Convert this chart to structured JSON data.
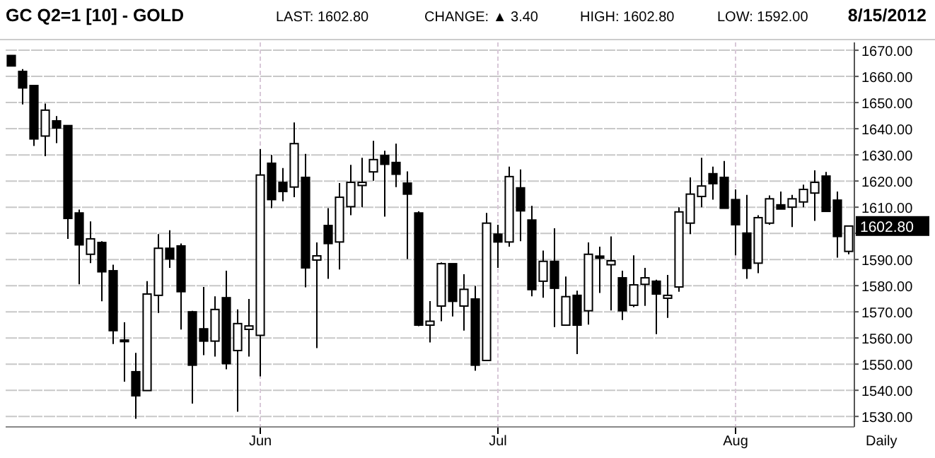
{
  "chart_data": {
    "type": "candlestick",
    "title": "GC Q2=1 [10] - GOLD",
    "annotations": [
      "LAST: 1602.80",
      "CHANGE: ▲ 3.40",
      "HIGH: 1602.80",
      "LOW: 1592.00",
      "8/15/2012",
      "Daily",
      "1602.80"
    ],
    "categories": [
      null,
      null,
      null,
      null,
      null,
      null,
      null,
      null,
      null,
      null,
      null,
      null,
      null,
      null,
      null,
      null,
      null,
      null,
      null,
      null,
      null,
      null,
      "Jun",
      null,
      null,
      null,
      null,
      null,
      null,
      null,
      null,
      null,
      null,
      null,
      null,
      null,
      null,
      null,
      null,
      null,
      null,
      null,
      null,
      "Jul",
      null,
      null,
      null,
      null,
      null,
      null,
      null,
      null,
      null,
      null,
      null,
      null,
      null,
      null,
      null,
      null,
      null,
      null,
      null,
      null,
      "Aug",
      null,
      null,
      null,
      null,
      null,
      null,
      null,
      null,
      null,
      null
    ],
    "ohlc": [
      [
        1668,
        1668,
        1664,
        1664
      ],
      [
        1661.9,
        1662.8,
        1649.3,
        1655.6
      ],
      [
        1656.5,
        1656.5,
        1633.4,
        1636.1
      ],
      [
        1637.2,
        1649.6,
        1629.5,
        1647.1
      ],
      [
        1643,
        1644.8,
        1634.5,
        1640.3
      ],
      [
        1641.2,
        1641.2,
        1597.9,
        1605.7
      ],
      [
        1607.8,
        1609.1,
        1580.5,
        1595.6
      ],
      [
        1592,
        1604.6,
        1588.6,
        1597.9
      ],
      [
        1596.5,
        1597,
        1574,
        1585.3
      ],
      [
        1585.7,
        1588,
        1557.7,
        1562.8
      ],
      [
        1559.2,
        1566,
        1543.3,
        1558.6
      ],
      [
        1547.1,
        1554.3,
        1529.1,
        1537.9
      ],
      [
        1539.9,
        1581.7,
        1539.9,
        1576.8
      ],
      [
        1576.3,
        1599.7,
        1569.6,
        1594.3
      ],
      [
        1594.3,
        1601.2,
        1586.8,
        1590.2
      ],
      [
        1595.2,
        1596.1,
        1563.2,
        1577.7
      ],
      [
        1570,
        1570.4,
        1534.9,
        1549.6
      ],
      [
        1563.5,
        1579.5,
        1553.4,
        1558.8
      ],
      [
        1558.8,
        1575.9,
        1552.9,
        1570.9
      ],
      [
        1575.4,
        1585.7,
        1548,
        1550.2
      ],
      [
        1555.2,
        1570.9,
        1531.8,
        1565.5
      ],
      [
        1563.3,
        1574.9,
        1552.9,
        1564.6
      ],
      [
        1561,
        1632.2,
        1545.3,
        1622.3
      ],
      [
        1626.8,
        1630,
        1609.6,
        1612.9
      ],
      [
        1619.5,
        1625,
        1612.3,
        1616
      ],
      [
        1617.7,
        1642.4,
        1613.8,
        1634.3
      ],
      [
        1621.4,
        1630.4,
        1579.4,
        1586.8
      ],
      [
        1589.8,
        1596.5,
        1556.1,
        1591.4
      ],
      [
        1603,
        1609.6,
        1582.6,
        1596.1
      ],
      [
        1596.7,
        1619.2,
        1586.2,
        1613.8
      ],
      [
        1610.2,
        1626.2,
        1606.9,
        1619.5
      ],
      [
        1618.3,
        1628.9,
        1610,
        1619.5
      ],
      [
        1623.5,
        1635.4,
        1620.1,
        1628.2
      ],
      [
        1629.8,
        1631.6,
        1606.4,
        1626.4
      ],
      [
        1627.1,
        1634.3,
        1617.7,
        1622.6
      ],
      [
        1619.2,
        1623.7,
        1590.2,
        1615
      ],
      [
        1607.8,
        1608.4,
        1564.5,
        1564.9
      ],
      [
        1564.9,
        1574.1,
        1558.3,
        1566.4
      ],
      [
        1572.2,
        1588.9,
        1566.4,
        1588.4
      ],
      [
        1588.4,
        1588.4,
        1568.2,
        1574
      ],
      [
        1572.2,
        1584.4,
        1562.8,
        1578.6
      ],
      [
        1574.9,
        1579.9,
        1547.5,
        1549.6
      ],
      [
        1551.4,
        1607.8,
        1551.4,
        1603.9
      ],
      [
        1599.7,
        1603.3,
        1586.8,
        1596.7
      ],
      [
        1596.7,
        1625.5,
        1594.9,
        1621.7
      ],
      [
        1617.4,
        1624.4,
        1597,
        1608.6
      ],
      [
        1605.1,
        1610.5,
        1575.9,
        1578.5
      ],
      [
        1581.7,
        1593.4,
        1575.4,
        1589.3
      ],
      [
        1589.3,
        1601.9,
        1564.2,
        1579
      ],
      [
        1564.9,
        1583.5,
        1564.9,
        1575.8
      ],
      [
        1576.3,
        1578.1,
        1553.8,
        1564.9
      ],
      [
        1570.4,
        1596.5,
        1565.1,
        1592
      ],
      [
        1591.3,
        1594.9,
        1577.2,
        1590.5
      ],
      [
        1588,
        1598.8,
        1570.5,
        1589.5
      ],
      [
        1583,
        1585.7,
        1566.9,
        1570.4
      ],
      [
        1572.5,
        1591.6,
        1571.8,
        1580.3
      ],
      [
        1580.5,
        1586.8,
        1572.3,
        1583
      ],
      [
        1581.7,
        1582.3,
        1561.5,
        1576.8
      ],
      [
        1575.2,
        1584.1,
        1567.7,
        1576.3
      ],
      [
        1579.5,
        1610,
        1577.7,
        1608.2
      ],
      [
        1603.9,
        1621.4,
        1599.7,
        1615
      ],
      [
        1614.1,
        1628.9,
        1610,
        1618.1
      ],
      [
        1622.8,
        1625.5,
        1612.9,
        1619
      ],
      [
        1621.4,
        1627.7,
        1609.6,
        1609.6
      ],
      [
        1612.9,
        1616.8,
        1591.6,
        1603.3
      ],
      [
        1600.1,
        1614.7,
        1582.6,
        1586.6
      ],
      [
        1588.6,
        1606.9,
        1584.8,
        1606
      ],
      [
        1603.9,
        1614.5,
        1603.3,
        1613.2
      ],
      [
        1610.9,
        1616,
        1609.3,
        1609.3
      ],
      [
        1610,
        1614.7,
        1602.4,
        1613.2
      ],
      [
        1612,
        1618.6,
        1610,
        1616.8
      ],
      [
        1615.4,
        1624.1,
        1604.8,
        1619.5
      ],
      [
        1621.9,
        1623.5,
        1608.4,
        1608.4
      ],
      [
        1612.7,
        1616,
        1590.7,
        1598.8
      ],
      [
        1593.1,
        1602.8,
        1592,
        1602.8
      ]
    ],
    "ylim": [
      1526,
      1673
    ],
    "yticks": [
      {
        "value": 1530,
        "label": "1530.00"
      },
      {
        "value": 1540,
        "label": "1540.00"
      },
      {
        "value": 1550,
        "label": "1550.00"
      },
      {
        "value": 1560,
        "label": "1560.00"
      },
      {
        "value": 1570,
        "label": "1570.00"
      },
      {
        "value": 1580,
        "label": "1580.00"
      },
      {
        "value": 1590,
        "label": "1590.00"
      },
      {
        "value": 1600,
        "label": null
      },
      {
        "value": 1610,
        "label": "1610.00"
      },
      {
        "value": 1620,
        "label": "1620.00"
      },
      {
        "value": 1630,
        "label": "1630.00"
      },
      {
        "value": 1640,
        "label": "1640.00"
      },
      {
        "value": 1650,
        "label": "1650.00"
      },
      {
        "value": 1660,
        "label": "1660.00"
      },
      {
        "value": 1670,
        "label": "1670.00"
      }
    ],
    "grid": true
  }
}
